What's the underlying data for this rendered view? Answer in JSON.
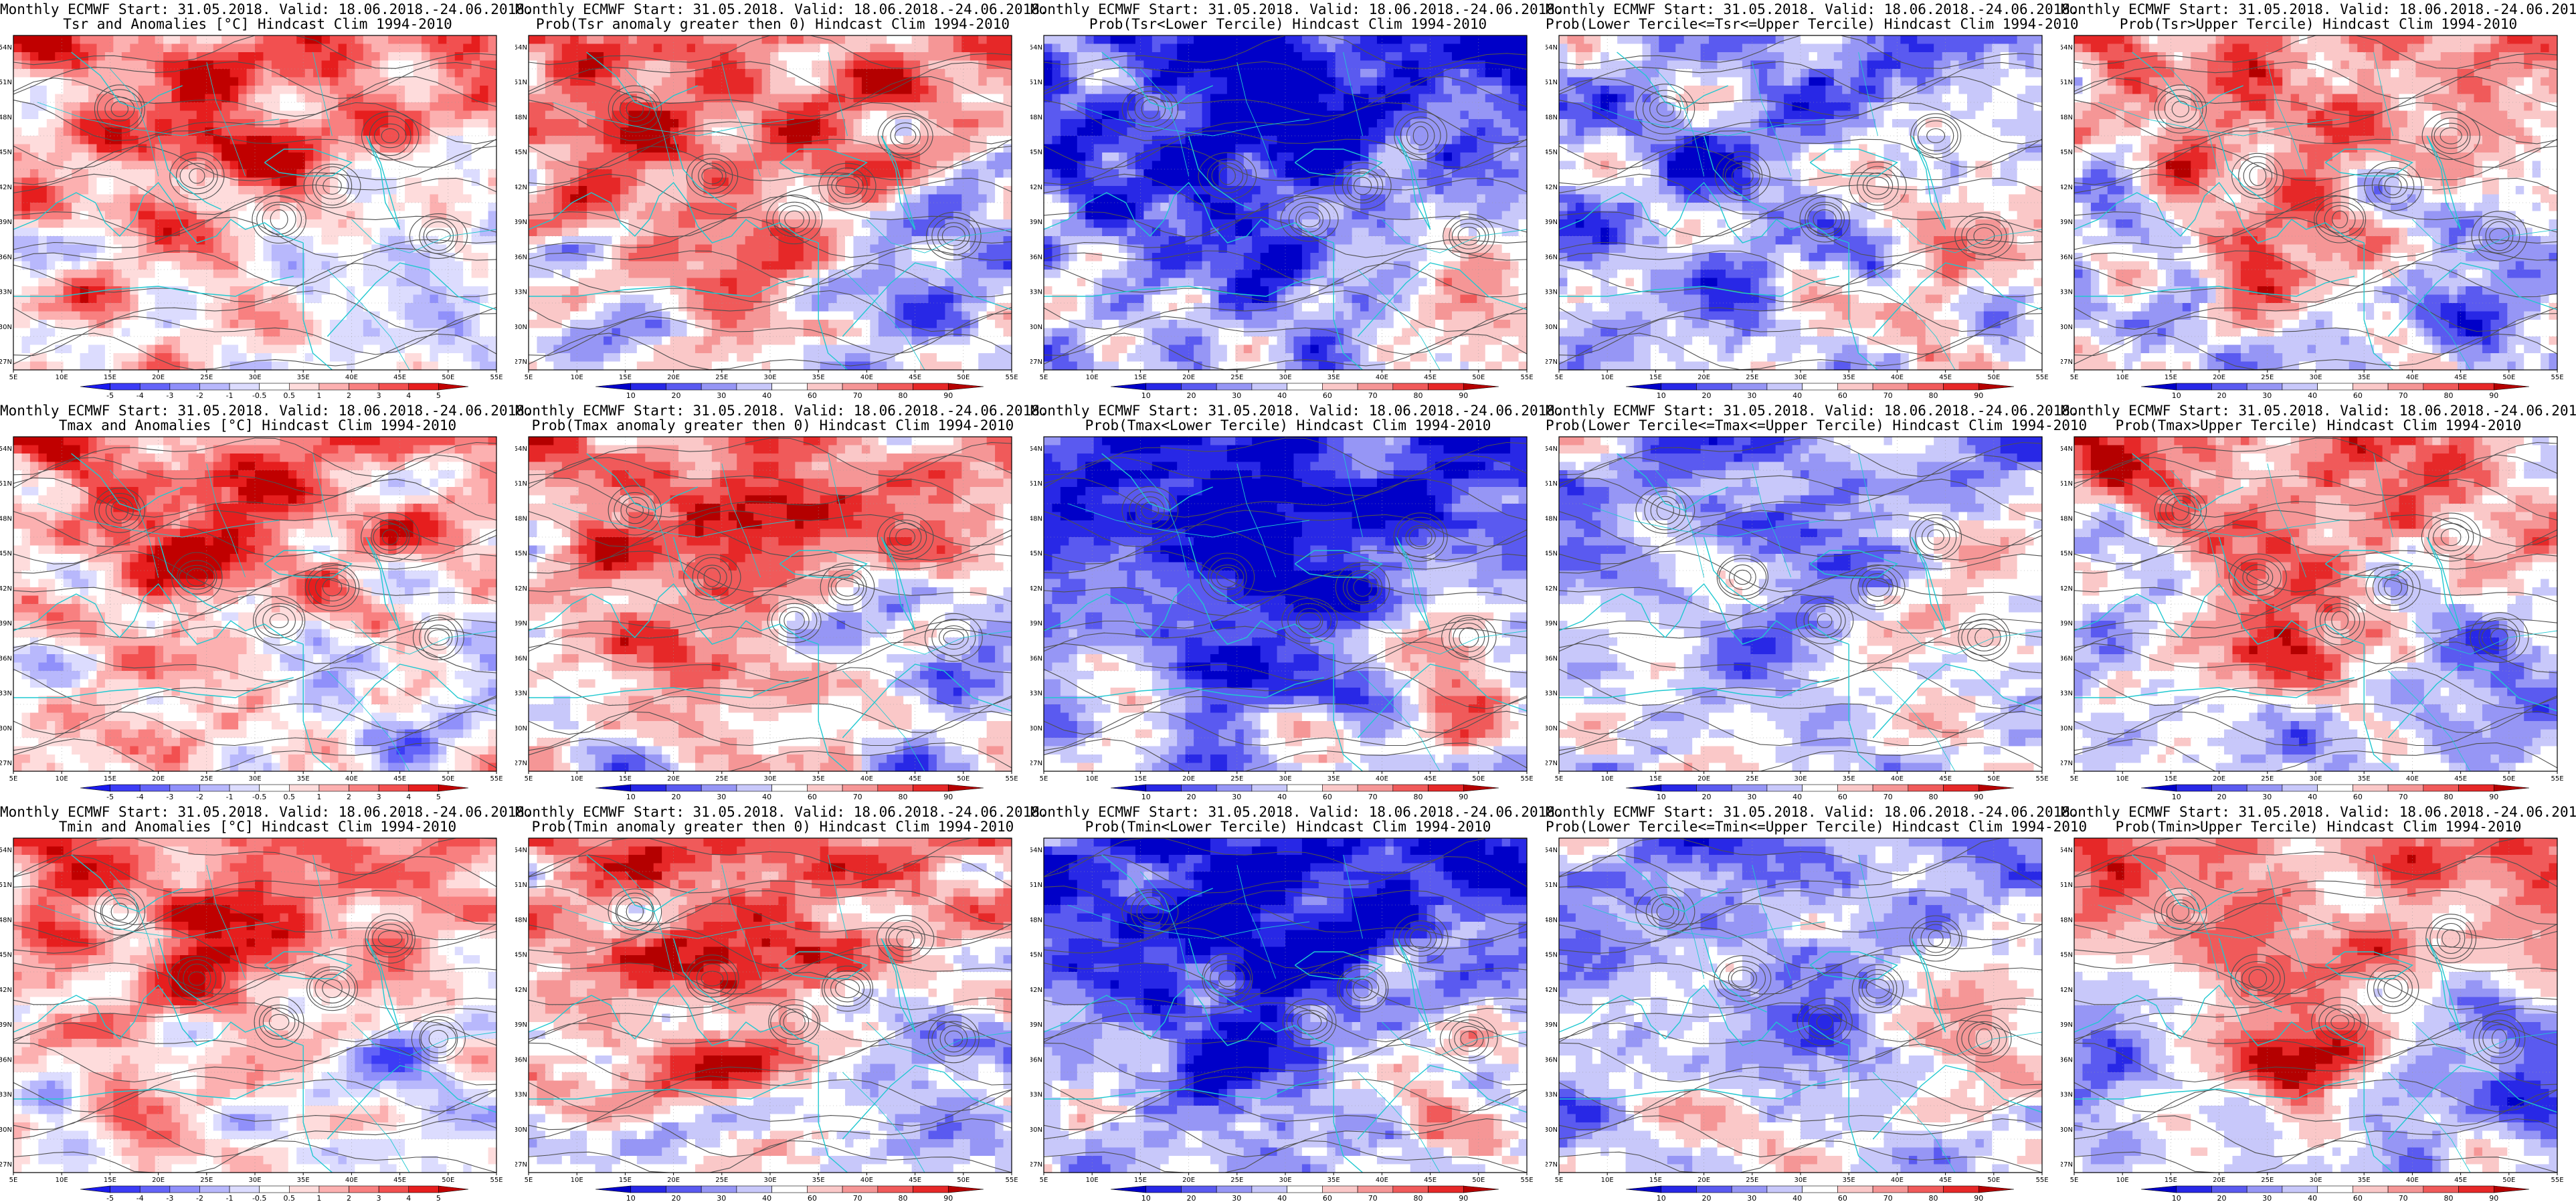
{
  "title_line1": "Monthly ECMWF Start: 31.05.2018. Valid: 18.06.2018.-24.06.2018.",
  "lon_labels": [
    "5E",
    "10E",
    "15E",
    "20E",
    "25E",
    "30E",
    "35E",
    "40E",
    "45E",
    "50E",
    "55E"
  ],
  "lat_labels": [
    "54N",
    "51N",
    "48N",
    "45N",
    "42N",
    "39N",
    "36N",
    "33N",
    "30N",
    "27N"
  ],
  "anomaly_scale": [
    "-5",
    "-4",
    "-3",
    "-2",
    "-1",
    "-0.5",
    "0.5",
    "1",
    "2",
    "3",
    "4",
    "5"
  ],
  "prob_scale": [
    "10",
    "20",
    "30",
    "40",
    "60",
    "70",
    "80",
    "90"
  ],
  "anomaly_colors": [
    "#1a1aee",
    "#3c3cf5",
    "#6464f8",
    "#9090fa",
    "#b8b8fc",
    "#dcdcfe",
    "#ffffff",
    "#fedcdc",
    "#fcb0b0",
    "#f88080",
    "#f25050",
    "#e61e1e",
    "#c00000"
  ],
  "prob_colors": [
    "#0000c8",
    "#2828e6",
    "#5a5af0",
    "#9696f5",
    "#c8c8fa",
    "#ffffff",
    "#fac8c8",
    "#f59696",
    "#f05a5a",
    "#e62828",
    "#b40000"
  ],
  "coast_color": "#20c8d0",
  "contour_color": "#505050",
  "rows": [
    {
      "variable": "Tsr",
      "panels": [
        {
          "title": "Tsr and Anomalies [°C] Hindcast Clim 1994-2010",
          "scale": "anomaly",
          "pattern": "anom"
        },
        {
          "title": "Prob(Tsr anomaly greater then 0) Hindcast Clim 1994-2010",
          "scale": "prob",
          "pattern": "pgt"
        },
        {
          "title": "Prob(Tsr<Lower Tercile) Hindcast Clim 1994-2010",
          "scale": "prob",
          "pattern": "plow"
        },
        {
          "title": "Prob(Lower Tercile<=Tsr<=Upper Tercile) Hindcast Clim 1994-2010",
          "scale": "prob",
          "pattern": "pmid"
        },
        {
          "title": "Prob(Tsr>Upper Tercile) Hindcast Clim 1994-2010",
          "scale": "prob",
          "pattern": "pup"
        }
      ]
    },
    {
      "variable": "Tmax",
      "panels": [
        {
          "title": "Tmax and Anomalies [°C] Hindcast Clim 1994-2010",
          "scale": "anomaly",
          "pattern": "anom"
        },
        {
          "title": "Prob(Tmax anomaly greater then 0) Hindcast Clim 1994-2010",
          "scale": "prob",
          "pattern": "pgt"
        },
        {
          "title": "Prob(Tmax<Lower Tercile) Hindcast Clim 1994-2010",
          "scale": "prob",
          "pattern": "plow"
        },
        {
          "title": "Prob(Lower Tercile<=Tmax<=Upper Tercile) Hindcast Clim 1994-2010",
          "scale": "prob",
          "pattern": "pmid"
        },
        {
          "title": "Prob(Tmax>Upper Tercile) Hindcast Clim 1994-2010",
          "scale": "prob",
          "pattern": "pup"
        }
      ]
    },
    {
      "variable": "Tmin",
      "panels": [
        {
          "title": "Tmin and Anomalies [°C] Hindcast Clim 1994-2010",
          "scale": "anomaly",
          "pattern": "anom"
        },
        {
          "title": "Prob(Tmin anomaly greater then 0) Hindcast Clim 1994-2010",
          "scale": "prob",
          "pattern": "pgt"
        },
        {
          "title": "Prob(Tmin<Lower Tercile) Hindcast Clim 1994-2010",
          "scale": "prob",
          "pattern": "plow"
        },
        {
          "title": "Prob(Lower Tercile<=Tmin<=Upper Tercile) Hindcast Clim 1994-2010",
          "scale": "prob",
          "pattern": "pmid"
        },
        {
          "title": "Prob(Tmin>Upper Tercile) Hindcast Clim 1994-2010",
          "scale": "prob",
          "pattern": "pup"
        }
      ]
    }
  ]
}
